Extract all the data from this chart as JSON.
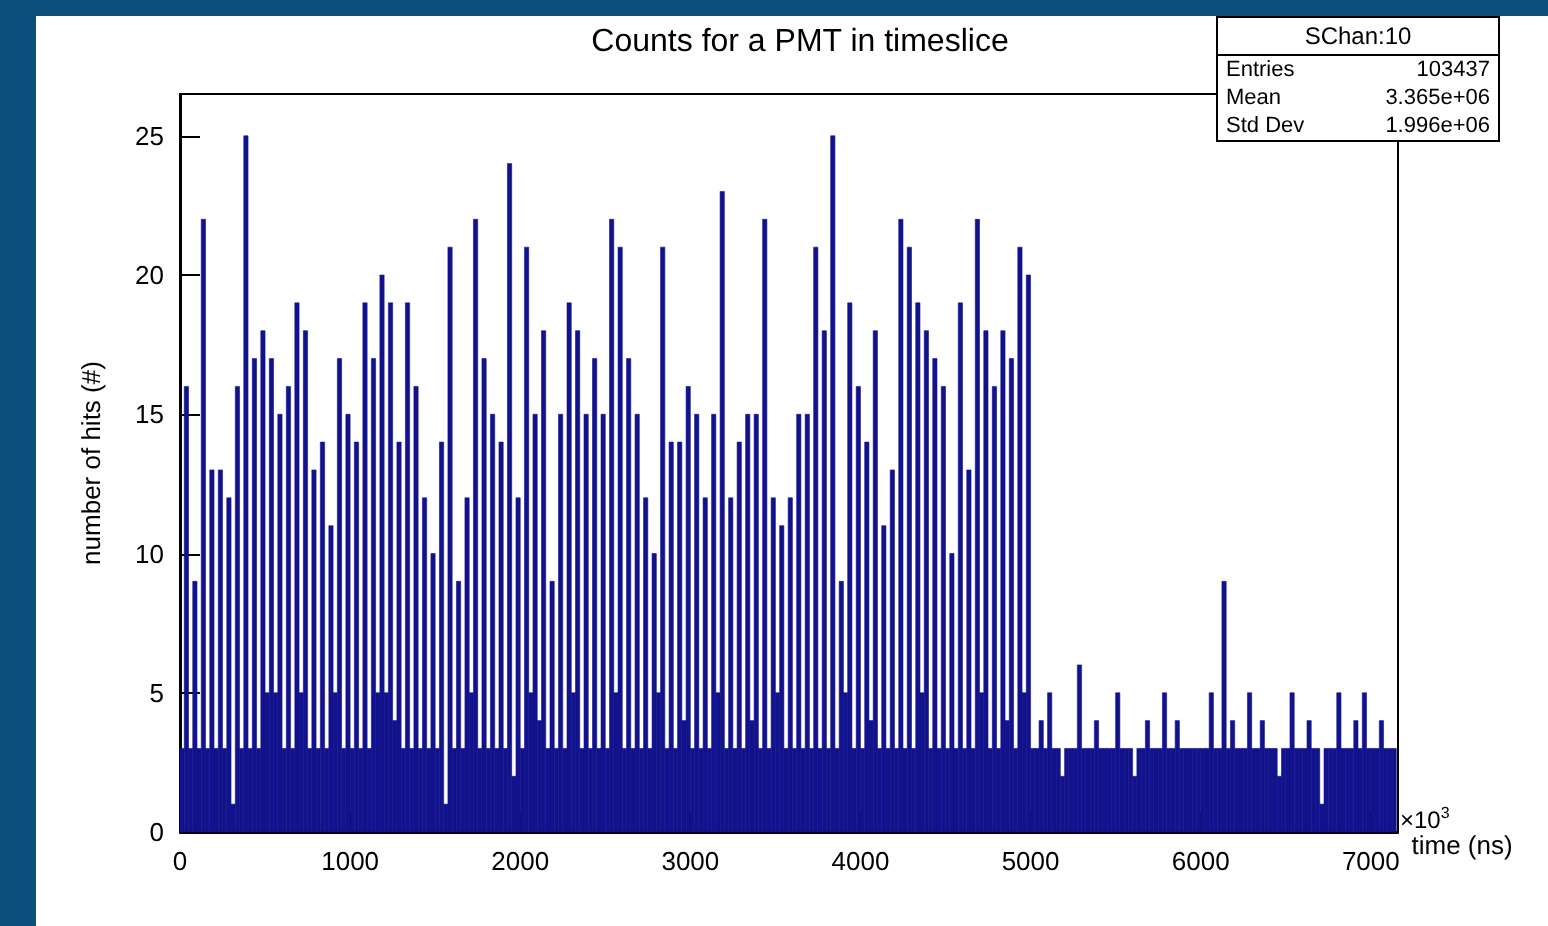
{
  "chart_data": {
    "type": "histogram",
    "title": "Counts for a PMT in timeslice",
    "xlabel": "time (ns)",
    "ylabel": "number of hits (#)",
    "color": "#12128c",
    "annotations": [
      "×10$^{3}$",
      "SChan:10",
      "Entries",
      "103437",
      "Mean",
      "3.365e+06",
      "Std Dev",
      "1.996e+06"
    ],
    "xlim": [
      0,
      7160
    ],
    "xticks": [
      0,
      1000,
      2000,
      3000,
      4000,
      5000,
      6000,
      7000
    ],
    "ylim": [
      0,
      26.5
    ],
    "yticks": [
      0,
      5,
      10,
      15,
      20,
      25
    ],
    "bins": [
      0,
      25,
      50,
      75,
      100,
      125,
      150,
      175,
      200,
      225,
      250,
      275,
      300,
      325,
      350,
      375,
      400,
      425,
      450,
      475,
      500,
      525,
      550,
      575,
      600,
      625,
      650,
      675,
      700,
      725,
      750,
      775,
      800,
      825,
      850,
      875,
      900,
      925,
      950,
      975,
      1000,
      1025,
      1050,
      1075,
      1100,
      1125,
      1150,
      1175,
      1200,
      1225,
      1250,
      1275,
      1300,
      1325,
      1350,
      1375,
      1400,
      1425,
      1450,
      1475,
      1500,
      1525,
      1550,
      1575,
      1600,
      1625,
      1650,
      1675,
      1700,
      1725,
      1750,
      1775,
      1800,
      1825,
      1850,
      1875,
      1900,
      1925,
      1950,
      1975,
      2000,
      2025,
      2050,
      2075,
      2100,
      2125,
      2150,
      2175,
      2200,
      2225,
      2250,
      2275,
      2300,
      2325,
      2350,
      2375,
      2400,
      2425,
      2450,
      2475,
      2500,
      2525,
      2550,
      2575,
      2600,
      2625,
      2650,
      2675,
      2700,
      2725,
      2750,
      2775,
      2800,
      2825,
      2850,
      2875,
      2900,
      2925,
      2950,
      2975,
      3000,
      3025,
      3050,
      3075,
      3100,
      3125,
      3150,
      3175,
      3200,
      3225,
      3250,
      3275,
      3300,
      3325,
      3350,
      3375,
      3400,
      3425,
      3450,
      3475,
      3500,
      3525,
      3550,
      3575,
      3600,
      3625,
      3650,
      3675,
      3700,
      3725,
      3750,
      3775,
      3800,
      3825,
      3850,
      3875,
      3900,
      3925,
      3950,
      3975,
      4000,
      4025,
      4050,
      4075,
      4100,
      4125,
      4150,
      4175,
      4200,
      4225,
      4250,
      4275,
      4300,
      4325,
      4350,
      4375,
      4400,
      4425,
      4450,
      4475,
      4500,
      4525,
      4550,
      4575,
      4600,
      4625,
      4650,
      4675,
      4700,
      4725,
      4750,
      4775,
      4800,
      4825,
      4850,
      4875,
      4900,
      4925,
      4950,
      4975,
      5000,
      5025,
      5050,
      5075,
      5100,
      5125,
      5150,
      5175,
      5200,
      5225,
      5250,
      5275,
      5300,
      5325,
      5350,
      5375,
      5400,
      5425,
      5450,
      5475,
      5500,
      5525,
      5550,
      5575,
      5600,
      5625,
      5650,
      5675,
      5700,
      5725,
      5750,
      5775,
      5800,
      5825,
      5850,
      5875,
      5900,
      5925,
      5950,
      5975,
      6000,
      6025,
      6050,
      6075,
      6100,
      6125,
      6150,
      6175,
      6200,
      6225,
      6250,
      6275,
      6300,
      6325,
      6350,
      6375,
      6400,
      6425,
      6450,
      6475,
      6500,
      6525,
      6550,
      6575,
      6600,
      6625,
      6650,
      6675,
      6700,
      6725,
      6750,
      6775,
      6800,
      6825,
      6850,
      6875,
      6900,
      6925,
      6950,
      6975,
      7000,
      7025,
      7050,
      7075,
      7100,
      7125,
      7150
    ],
    "values": [
      3,
      16,
      3,
      9,
      3,
      22,
      3,
      13,
      3,
      13,
      3,
      12,
      1,
      16,
      3,
      25,
      3,
      17,
      3,
      18,
      5,
      17,
      5,
      15,
      3,
      16,
      3,
      19,
      5,
      18,
      3,
      13,
      3,
      14,
      3,
      11,
      5,
      17,
      3,
      15,
      3,
      14,
      3,
      19,
      3,
      17,
      5,
      20,
      5,
      19,
      4,
      14,
      3,
      19,
      3,
      16,
      3,
      12,
      3,
      10,
      3,
      14,
      1,
      21,
      3,
      9,
      3,
      12,
      5,
      22,
      3,
      17,
      3,
      15,
      3,
      14,
      3,
      24,
      2,
      12,
      3,
      21,
      5,
      15,
      4,
      18,
      3,
      9,
      3,
      15,
      3,
      19,
      5,
      18,
      3,
      15,
      3,
      17,
      3,
      15,
      3,
      22,
      5,
      21,
      3,
      17,
      3,
      15,
      3,
      12,
      3,
      10,
      5,
      21,
      3,
      14,
      3,
      14,
      4,
      16,
      3,
      15,
      3,
      12,
      3,
      15,
      5,
      23,
      3,
      12,
      3,
      14,
      3,
      15,
      4,
      15,
      3,
      22,
      3,
      12,
      5,
      11,
      3,
      12,
      3,
      15,
      3,
      15,
      3,
      21,
      3,
      18,
      3,
      25,
      3,
      9,
      5,
      19,
      3,
      16,
      3,
      14,
      4,
      18,
      3,
      11,
      3,
      13,
      3,
      22,
      3,
      21,
      3,
      19,
      5,
      18,
      3,
      17,
      3,
      16,
      3,
      10,
      3,
      19,
      3,
      13,
      3,
      22,
      5,
      18,
      3,
      16,
      3,
      18,
      4,
      17,
      3,
      21,
      5,
      20,
      3,
      3,
      4,
      3,
      5,
      3,
      3,
      2,
      3,
      3,
      3,
      6,
      3,
      3,
      3,
      4,
      3,
      3,
      3,
      3,
      5,
      3,
      3,
      3,
      2,
      3,
      3,
      4,
      3,
      3,
      3,
      5,
      3,
      3,
      4,
      3,
      3,
      3,
      3,
      3,
      3,
      3,
      5,
      3,
      3,
      9,
      3,
      4,
      3,
      3,
      3,
      5,
      3,
      3,
      4,
      3,
      3,
      3,
      2,
      3,
      3,
      5,
      3,
      3,
      3,
      4,
      3,
      3,
      1,
      3,
      3,
      3,
      5,
      3,
      3,
      3,
      4,
      3,
      5,
      3,
      3,
      3,
      4,
      3,
      3,
      3
    ]
  }
}
